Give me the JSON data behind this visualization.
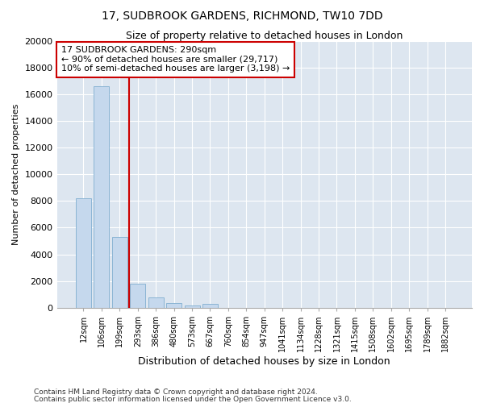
{
  "title": "17, SUDBROOK GARDENS, RICHMOND, TW10 7DD",
  "subtitle": "Size of property relative to detached houses in London",
  "xlabel": "Distribution of detached houses by size in London",
  "ylabel": "Number of detached properties",
  "categories": [
    "12sqm",
    "106sqm",
    "199sqm",
    "293sqm",
    "386sqm",
    "480sqm",
    "573sqm",
    "667sqm",
    "760sqm",
    "854sqm",
    "947sqm",
    "1041sqm",
    "1134sqm",
    "1228sqm",
    "1321sqm",
    "1415sqm",
    "1508sqm",
    "1602sqm",
    "1695sqm",
    "1789sqm",
    "1882sqm"
  ],
  "values": [
    8200,
    16600,
    5300,
    1800,
    800,
    350,
    200,
    300,
    0,
    0,
    0,
    0,
    0,
    0,
    0,
    0,
    0,
    0,
    0,
    0,
    0
  ],
  "bar_color": "#c5d8ed",
  "bar_edge_color": "#8ab4d4",
  "vline_x": 2.5,
  "vline_color": "#cc0000",
  "annotation_title": "17 SUDBROOK GARDENS: 290sqm",
  "annotation_line1": "← 90% of detached houses are smaller (29,717)",
  "annotation_line2": "10% of semi-detached houses are larger (3,198) →",
  "annotation_box_color": "#cc0000",
  "ylim": [
    0,
    20000
  ],
  "yticks": [
    0,
    2000,
    4000,
    6000,
    8000,
    10000,
    12000,
    14000,
    16000,
    18000,
    20000
  ],
  "footer1": "Contains HM Land Registry data © Crown copyright and database right 2024.",
  "footer2": "Contains public sector information licensed under the Open Government Licence v3.0.",
  "bg_color": "#ffffff",
  "plot_bg_color": "#dde6f0",
  "grid_color": "#ffffff"
}
